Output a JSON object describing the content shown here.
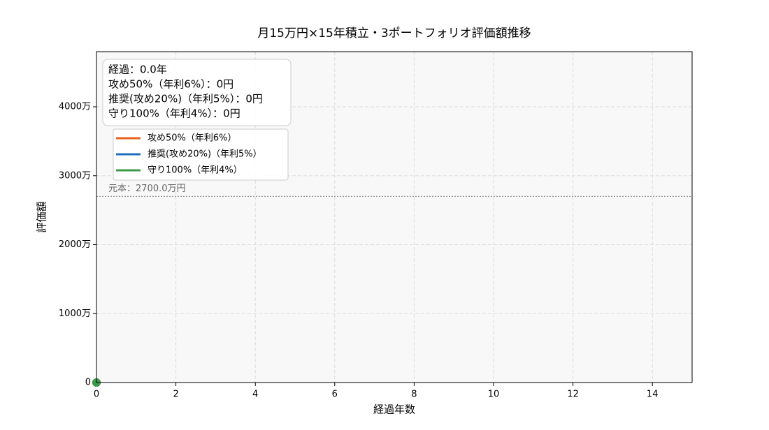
{
  "chart_data": {
    "type": "line",
    "title": "月15万円×15年積立・3ポートフォリオ評価額推移",
    "xlabel": "経過年数",
    "ylabel": "評価額",
    "x": [
      0
    ],
    "series": [
      {
        "name": "攻め50%（年利6%）",
        "color": "#e8601c",
        "values": [
          0
        ]
      },
      {
        "name": "推奨(攻め20%)（年利5%）",
        "color": "#1f6fbf",
        "values": [
          0
        ]
      },
      {
        "name": "守り100%（年利4%）",
        "color": "#3a9a4a",
        "values": [
          0
        ]
      }
    ],
    "xlim": [
      0,
      15
    ],
    "xticks": [
      0,
      2,
      4,
      6,
      8,
      10,
      12,
      14
    ],
    "ylim": [
      0,
      4800
    ],
    "yticks": [
      0,
      {
        "value": 1000,
        "label": "1000万"
      },
      {
        "value": 2000,
        "label": "2000万"
      },
      {
        "value": 3000,
        "label": "3000万"
      },
      {
        "value": 4000,
        "label": "4000万"
      }
    ],
    "grid": true,
    "legend": "upper left",
    "reference_line": {
      "value": 2700,
      "label": "元本：2700.0万円"
    },
    "annotations": [
      "経過：0.0年",
      "攻め50%（年利6%）：0円",
      "推奨(攻め20%)（年利5%）：0円",
      "守り100%（年利4%）：0円"
    ]
  }
}
